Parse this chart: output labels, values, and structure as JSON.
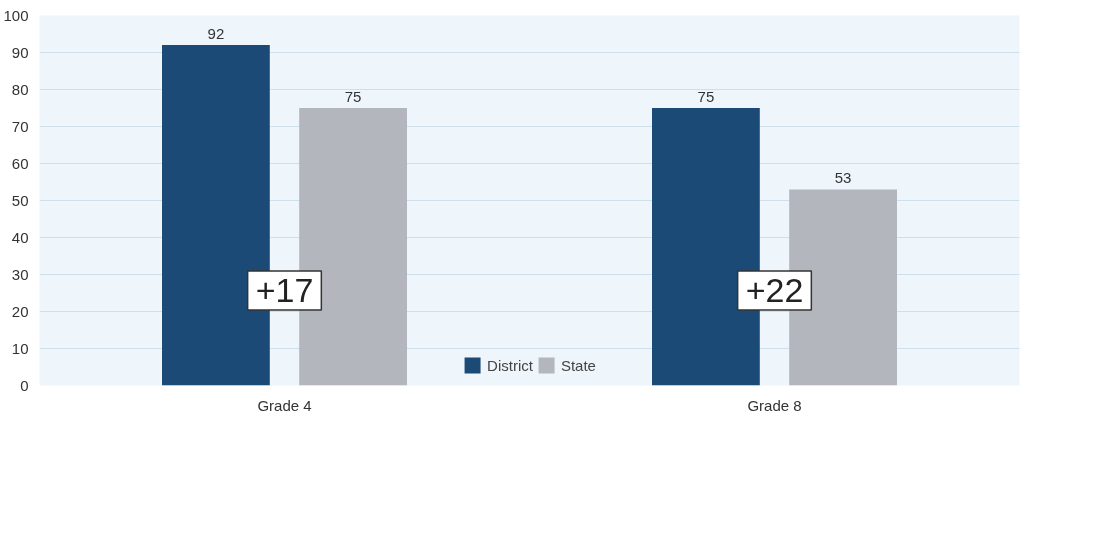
{
  "chart_data": {
    "type": "bar",
    "categories": [
      "Grade 4",
      "Grade 8"
    ],
    "series": [
      {
        "name": "District",
        "color": "#1b4a76",
        "values": [
          92,
          75
        ]
      },
      {
        "name": "State",
        "color": "#b3b6bd",
        "values": [
          75,
          53
        ]
      }
    ],
    "ylim": [
      0,
      100
    ],
    "yticks": [
      0,
      10,
      20,
      30,
      40,
      50,
      60,
      70,
      80,
      90,
      100
    ],
    "grid": "y",
    "legend": "bottom",
    "data_labels": true,
    "annotations": [
      "+17",
      "+22"
    ]
  }
}
